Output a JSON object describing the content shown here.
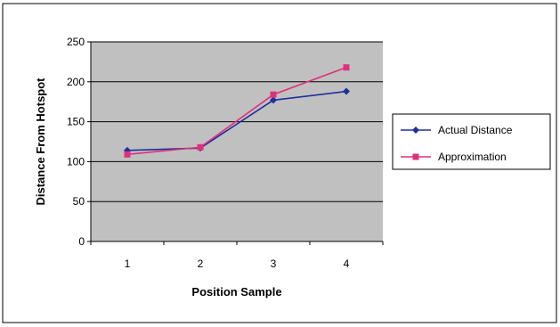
{
  "chart_data": {
    "type": "line",
    "title": "",
    "xlabel": "Position Sample",
    "ylabel": "Distance From Hotspot",
    "categories": [
      "1",
      "2",
      "3",
      "4"
    ],
    "ylim": [
      0,
      250
    ],
    "yticks": [
      "0",
      "50",
      "100",
      "150",
      "200",
      "250"
    ],
    "grid": "horizontal",
    "legend_position": "right",
    "plot_background": "#c0c0c0",
    "series": [
      {
        "name": "Actual Distance",
        "values": [
          114,
          117,
          177,
          188
        ],
        "color": "#1f2f9e",
        "marker": "diamond"
      },
      {
        "name": "Approximation",
        "values": [
          109,
          118,
          184,
          218
        ],
        "color": "#e0307a",
        "marker": "square"
      }
    ]
  }
}
